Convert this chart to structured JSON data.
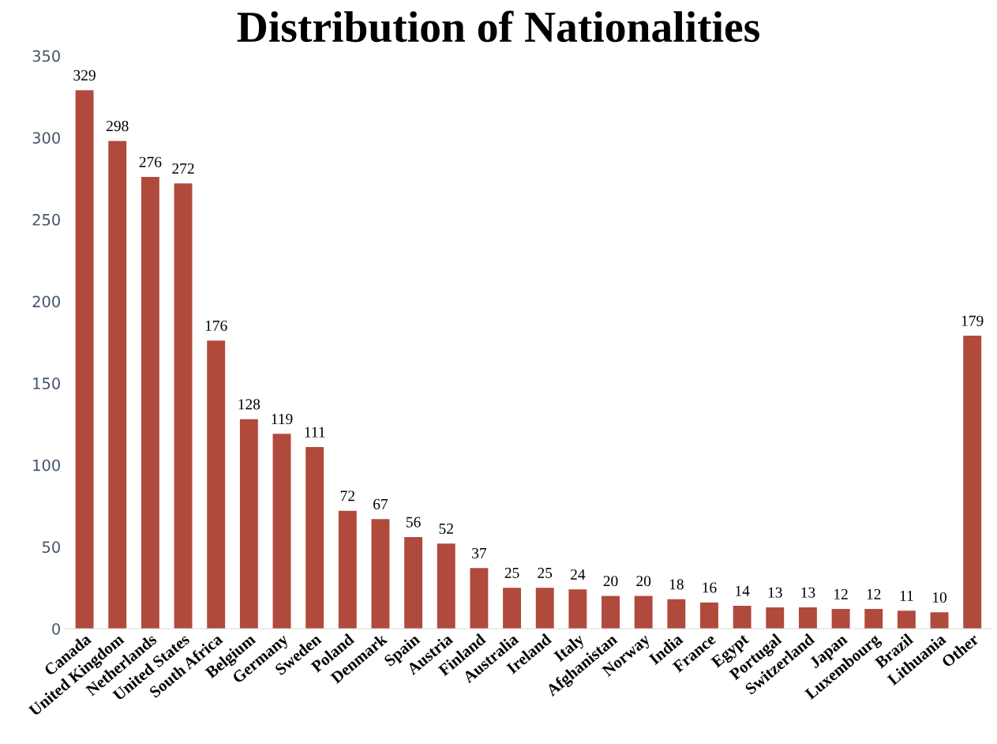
{
  "chart_data": {
    "type": "bar",
    "title": "Distribution of Nationalities",
    "categories": [
      "Canada",
      "United Kingdom",
      "Netherlands",
      "United States",
      "South Africa",
      "Belgium",
      "Germany",
      "Sweden",
      "Poland",
      "Denmark",
      "Spain",
      "Austria",
      "Finland",
      "Australia",
      "Ireland",
      "Italy",
      "Afghanistan",
      "Norway",
      "India",
      "France",
      "Egypt",
      "Portugal",
      "Switzerland",
      "Japan",
      "Luxembourg",
      "Brazil",
      "Lithuania",
      "Other"
    ],
    "values": [
      329,
      298,
      276,
      272,
      176,
      128,
      119,
      111,
      72,
      67,
      56,
      52,
      37,
      25,
      25,
      24,
      20,
      20,
      18,
      16,
      14,
      13,
      13,
      12,
      12,
      11,
      10,
      179
    ],
    "color": "#b04a3c",
    "ylim": [
      0,
      350
    ],
    "yticks": [
      0,
      50,
      100,
      150,
      200,
      250,
      300,
      350
    ],
    "data_labels": true,
    "grid": false,
    "legend": false
  }
}
